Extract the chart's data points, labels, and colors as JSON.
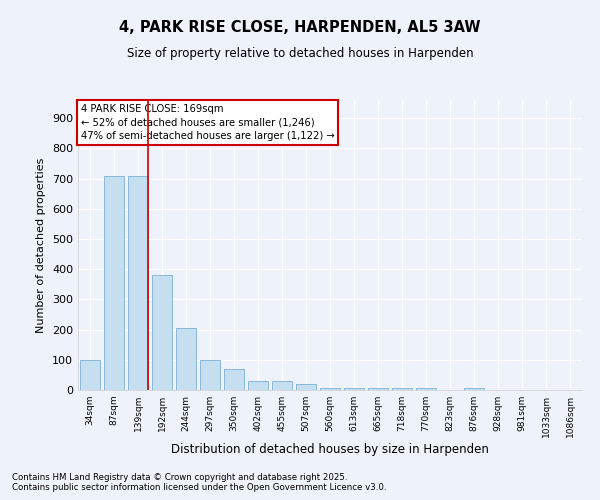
{
  "title": "4, PARK RISE CLOSE, HARPENDEN, AL5 3AW",
  "subtitle": "Size of property relative to detached houses in Harpenden",
  "xlabel": "Distribution of detached houses by size in Harpenden",
  "ylabel": "Number of detached properties",
  "categories": [
    "34sqm",
    "87sqm",
    "139sqm",
    "192sqm",
    "244sqm",
    "297sqm",
    "350sqm",
    "402sqm",
    "455sqm",
    "507sqm",
    "560sqm",
    "613sqm",
    "665sqm",
    "718sqm",
    "770sqm",
    "823sqm",
    "876sqm",
    "928sqm",
    "981sqm",
    "1033sqm",
    "1086sqm"
  ],
  "values": [
    100,
    710,
    710,
    380,
    205,
    100,
    70,
    30,
    30,
    20,
    5,
    5,
    5,
    5,
    5,
    0,
    5,
    0,
    0,
    0,
    0
  ],
  "bar_color": "#c5dff0",
  "bar_edge_color": "#8ab8d8",
  "red_line_x": 2.425,
  "annotation_text": "4 PARK RISE CLOSE: 169sqm\n← 52% of detached houses are smaller (1,246)\n47% of semi-detached houses are larger (1,122) →",
  "annotation_box_color": "#ffffff",
  "annotation_box_edge": "#cc0000",
  "red_line_color": "#cc0000",
  "background_color": "#eef2fa",
  "grid_color": "#ffffff",
  "ylim": [
    0,
    960
  ],
  "yticks": [
    0,
    100,
    200,
    300,
    400,
    500,
    600,
    700,
    800,
    900
  ],
  "footer_line1": "Contains HM Land Registry data © Crown copyright and database right 2025.",
  "footer_line2": "Contains public sector information licensed under the Open Government Licence v3.0."
}
